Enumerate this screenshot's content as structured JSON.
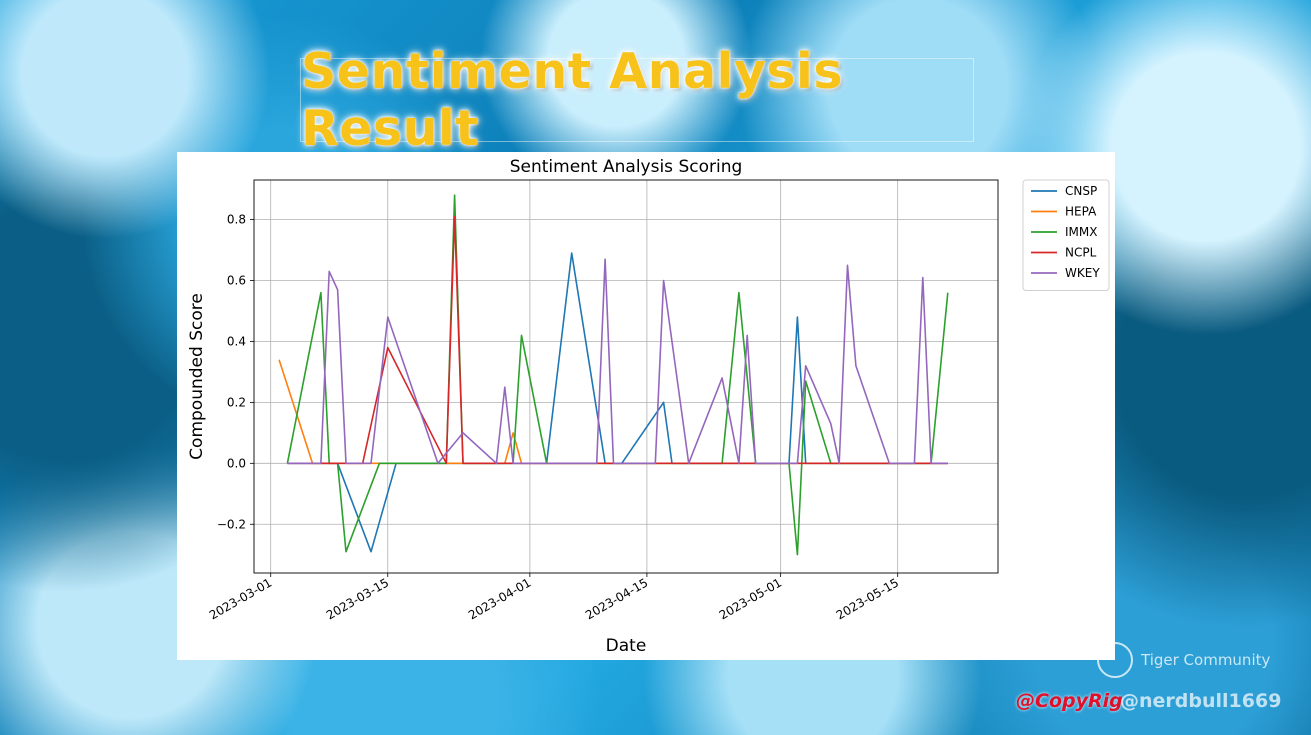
{
  "slide": {
    "title": "Sentiment Analysis Result",
    "watermark_logo_text": "Tiger Community",
    "copyright": "@CopyRig",
    "copyright_overlay": "@nerdbull1669"
  },
  "colors": {
    "title": "#f7c21a",
    "CNSP": "#1f77b4",
    "HEPA": "#ff7f0e",
    "IMMX": "#2ca02c",
    "NCPL": "#d62728",
    "WKEY": "#9467bd"
  },
  "chart_data": {
    "type": "line",
    "title": "Sentiment Analysis Scoring",
    "xlabel": "Date",
    "ylabel": "Compounded Score",
    "xlim": [
      "2023-02-27",
      "2023-05-27"
    ],
    "ylim": [
      -0.36,
      0.93
    ],
    "xticks": [
      "2023-03-01",
      "2023-03-15",
      "2023-04-01",
      "2023-04-15",
      "2023-05-01",
      "2023-05-15"
    ],
    "yticks": [
      -0.2,
      0.0,
      0.2,
      0.4,
      0.6,
      0.8
    ],
    "ytick_labels": [
      "−0.2",
      "0.0",
      "0.2",
      "0.4",
      "0.6",
      "0.8"
    ],
    "grid": true,
    "legend": "outside-top-right",
    "series": [
      {
        "name": "CNSP",
        "points": [
          [
            "2023-03-03",
            0
          ],
          [
            "2023-03-09",
            0
          ],
          [
            "2023-03-13",
            -0.29
          ],
          [
            "2023-03-16",
            0
          ],
          [
            "2023-04-03",
            0
          ],
          [
            "2023-04-06",
            0.69
          ],
          [
            "2023-04-10",
            0
          ],
          [
            "2023-04-12",
            0
          ],
          [
            "2023-04-17",
            0.2
          ],
          [
            "2023-04-18",
            0
          ],
          [
            "2023-05-02",
            0
          ],
          [
            "2023-05-03",
            0.48
          ],
          [
            "2023-05-04",
            0
          ],
          [
            "2023-05-21",
            0
          ]
        ]
      },
      {
        "name": "HEPA",
        "points": [
          [
            "2023-03-02",
            0.34
          ],
          [
            "2023-03-06",
            0
          ],
          [
            "2023-03-29",
            0
          ],
          [
            "2023-03-30",
            0.1
          ],
          [
            "2023-03-31",
            0
          ],
          [
            "2023-05-21",
            0
          ]
        ]
      },
      {
        "name": "IMMX",
        "points": [
          [
            "2023-03-03",
            0
          ],
          [
            "2023-03-07",
            0.56
          ],
          [
            "2023-03-08",
            0
          ],
          [
            "2023-03-09",
            0
          ],
          [
            "2023-03-10",
            -0.29
          ],
          [
            "2023-03-14",
            0
          ],
          [
            "2023-03-22",
            0
          ],
          [
            "2023-03-23",
            0.88
          ],
          [
            "2023-03-24",
            0
          ],
          [
            "2023-03-30",
            0
          ],
          [
            "2023-03-31",
            0.42
          ],
          [
            "2023-04-03",
            0
          ],
          [
            "2023-04-24",
            0
          ],
          [
            "2023-04-26",
            0.56
          ],
          [
            "2023-04-28",
            0
          ],
          [
            "2023-05-02",
            0
          ],
          [
            "2023-05-03",
            -0.3
          ],
          [
            "2023-05-04",
            0.27
          ],
          [
            "2023-05-07",
            0
          ],
          [
            "2023-05-19",
            0
          ],
          [
            "2023-05-21",
            0.56
          ]
        ]
      },
      {
        "name": "NCPL",
        "points": [
          [
            "2023-03-03",
            0
          ],
          [
            "2023-03-12",
            0
          ],
          [
            "2023-03-15",
            0.38
          ],
          [
            "2023-03-22",
            0
          ],
          [
            "2023-03-23",
            0.81
          ],
          [
            "2023-03-24",
            0
          ],
          [
            "2023-05-21",
            0
          ]
        ]
      },
      {
        "name": "WKEY",
        "points": [
          [
            "2023-03-03",
            0
          ],
          [
            "2023-03-07",
            0
          ],
          [
            "2023-03-08",
            0.63
          ],
          [
            "2023-03-09",
            0.57
          ],
          [
            "2023-03-10",
            0
          ],
          [
            "2023-03-13",
            0
          ],
          [
            "2023-03-15",
            0.48
          ],
          [
            "2023-03-21",
            0
          ],
          [
            "2023-03-24",
            0.1
          ],
          [
            "2023-03-28",
            0
          ],
          [
            "2023-03-29",
            0.25
          ],
          [
            "2023-03-30",
            0
          ],
          [
            "2023-04-09",
            0
          ],
          [
            "2023-04-10",
            0.67
          ],
          [
            "2023-04-11",
            0
          ],
          [
            "2023-04-16",
            0
          ],
          [
            "2023-04-17",
            0.6
          ],
          [
            "2023-04-20",
            0
          ],
          [
            "2023-04-24",
            0.28
          ],
          [
            "2023-04-26",
            0
          ],
          [
            "2023-04-27",
            0.42
          ],
          [
            "2023-04-28",
            0
          ],
          [
            "2023-05-03",
            0
          ],
          [
            "2023-05-04",
            0.32
          ],
          [
            "2023-05-07",
            0.13
          ],
          [
            "2023-05-08",
            0
          ],
          [
            "2023-05-09",
            0.65
          ],
          [
            "2023-05-10",
            0.32
          ],
          [
            "2023-05-14",
            0
          ],
          [
            "2023-05-17",
            0
          ],
          [
            "2023-05-18",
            0.61
          ],
          [
            "2023-05-19",
            0
          ],
          [
            "2023-05-21",
            0
          ]
        ]
      }
    ]
  }
}
